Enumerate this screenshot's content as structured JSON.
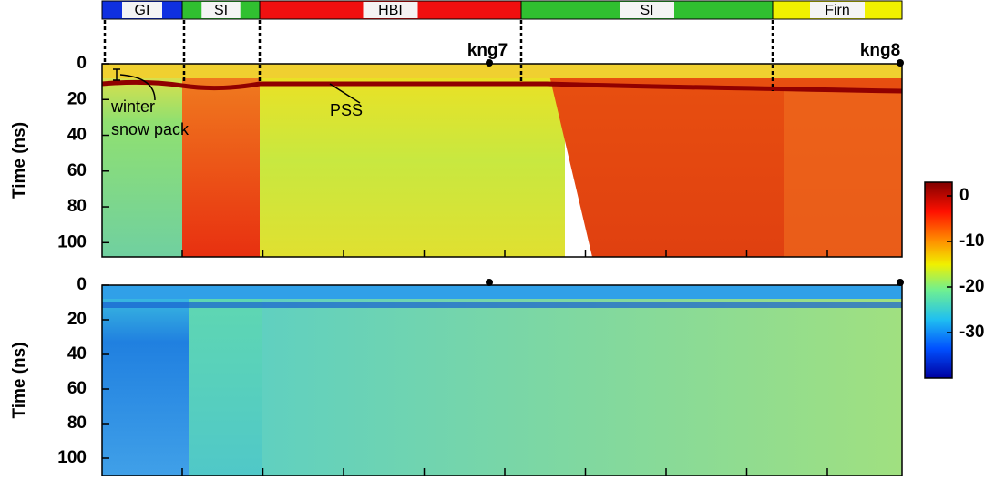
{
  "zones": [
    {
      "label": "GI",
      "color": "#1030e0"
    },
    {
      "label": "SI",
      "color": "#30c030"
    },
    {
      "label": "HBI",
      "color": "#f01010"
    },
    {
      "label": "SI",
      "color": "#30c030"
    },
    {
      "label": "Firn",
      "color": "#f0f000"
    }
  ],
  "markers": [
    "kng7",
    "kng8"
  ],
  "annotations": [
    "winter",
    "snow pack",
    "PSS"
  ],
  "chart_data": [
    {
      "type": "heatmap",
      "ylabel": "Time (ns)",
      "ylim": [
        0,
        108
      ],
      "yticks": [
        0,
        20,
        40,
        60,
        80,
        100
      ]
    },
    {
      "type": "heatmap",
      "ylabel": "Time (ns)",
      "ylim": [
        0,
        110
      ],
      "yticks": [
        0,
        20,
        40,
        60,
        80,
        100
      ]
    }
  ],
  "colorbar": {
    "clim": [
      -40,
      3
    ],
    "ticks": [
      0,
      -10,
      -20,
      -30
    ]
  }
}
